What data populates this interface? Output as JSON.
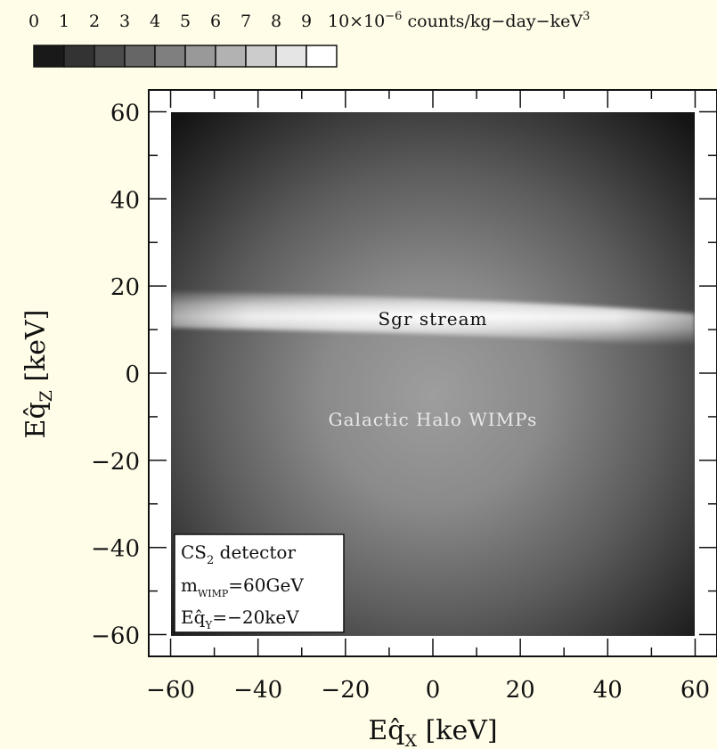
{
  "chart_data": {
    "type": "heatmap",
    "colorbar": {
      "tick_labels": [
        "0",
        "1",
        "2",
        "3",
        "4",
        "5",
        "6",
        "7",
        "8",
        "9"
      ],
      "max_prefix": "10",
      "max_suffix": "×10",
      "exponent": "−6",
      "units": "counts/kg−day−keV",
      "units_exponent": "3",
      "range": [
        0,
        10
      ],
      "colormap": "grayscale, black (0) to white (10)"
    },
    "x_axis": {
      "title_base": "Eq̂",
      "title_sub": "X",
      "title_units": "[keV]",
      "range": [
        -65,
        65
      ],
      "ticks": [
        -60,
        -40,
        -20,
        0,
        20,
        40,
        60
      ],
      "tick_labels": [
        "−60",
        "−40",
        "−20",
        "0",
        "20",
        "40",
        "60"
      ]
    },
    "y_axis": {
      "title_base": "Eq̂",
      "title_sub": "Z",
      "title_units": "[keV]",
      "range": [
        -65,
        65
      ],
      "ticks": [
        -60,
        -40,
        -20,
        0,
        20,
        40,
        60
      ],
      "tick_labels": [
        "60",
        "40",
        "20",
        "0",
        "−20",
        "−40",
        "−60"
      ]
    },
    "data_extent": {
      "x": [
        -60,
        60
      ],
      "y": [
        -60,
        60
      ]
    },
    "features": [
      {
        "name": "Galactic Halo WIMPs",
        "kind": "diffuse blob",
        "center": [
          0,
          -5
        ],
        "peak_value": 6.2
      },
      {
        "name": "Sgr stream",
        "kind": "horizontal band",
        "y_center": 13,
        "y_halfwidth": 3,
        "peak_value": 9.5
      }
    ],
    "annotations": [
      "Sgr stream",
      "Galactic Halo WIMPs"
    ],
    "legend": {
      "placement": "bottom-left",
      "line1_base": "CS",
      "line1_sub": "2",
      "line1_rest": " detector",
      "line2_base": "m",
      "line2_sub": "WIMP",
      "line2_rest": "=60GeV",
      "line3_base": "Eq̂",
      "line3_sub": "Y",
      "line3_rest": "=−20keV"
    }
  }
}
